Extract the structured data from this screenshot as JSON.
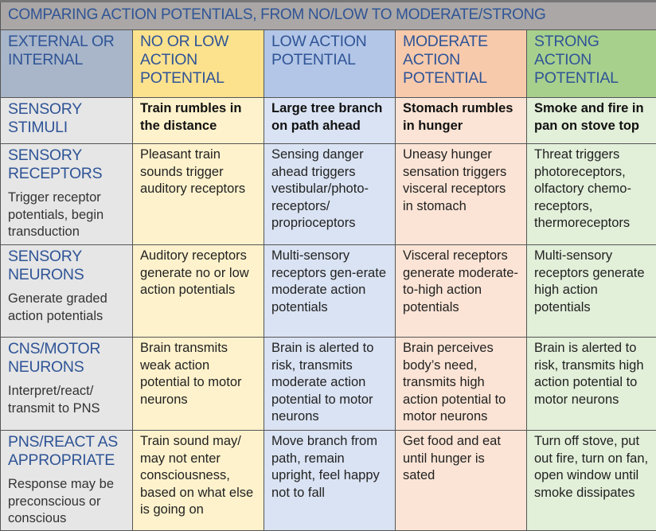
{
  "title": "COMPARING ACTION POTENTIALS, FROM NO/LOW TO MODERATE/STRONG",
  "headers": [
    "EXTERNAL OR INTERNAL",
    "NO OR LOW ACTION POTENTIAL",
    "LOW ACTION POTENTIAL",
    "MODERATE ACTION POTENTIAL",
    "STRONG ACTION POTENTIAL"
  ],
  "rows": [
    {
      "label": "SENSORY STIMULI",
      "sub": "",
      "cells": [
        "Train rumbles in the distance",
        "Large tree branch on path ahead",
        "Stomach rumbles in hunger",
        "Smoke and fire in pan on stove top"
      ]
    },
    {
      "label": "SENSORY RECEPTORS",
      "sub": "Trigger receptor potentials, begin transduction",
      "cells": [
        "Pleasant train sounds trigger auditory receptors",
        "Sensing danger ahead triggers vestibular/photo-receptors/ proprioceptors",
        "Uneasy hunger sensation triggers visceral receptors in stomach",
        "Threat triggers photoreceptors, olfactory chemo-receptors, thermoreceptors"
      ]
    },
    {
      "label": "SENSORY NEURONS",
      "sub": "Generate graded action potentials",
      "cells": [
        "Auditory receptors generate no or low action potentials",
        "Multi-sensory receptors gen-erate moderate action potentials",
        "Visceral receptors generate moderate-to-high action potentials",
        "Multi-sensory receptors generate high action potentials"
      ]
    },
    {
      "label": "CNS/MOTOR NEURONS",
      "sub": "Interpret/react/ transmit to PNS",
      "cells": [
        "Brain transmits weak action potential to motor neurons",
        "Brain is alerted to risk, transmits moderate action potential to motor neurons",
        "Brain perceives body’s need, transmits high action potential to motor neurons",
        "Brain is alerted to risk, transmits high action potential to motor neurons"
      ]
    },
    {
      "label": "PNS/REACT AS APPROPRIATE",
      "sub": "Response may be preconscious or conscious",
      "cells": [
        "Train sound may/ may not enter consciousness, based on what else is going on",
        "Move branch from path, remain upright, feel happy not to fall",
        "Get food and eat until hunger is sated",
        "Turn off stove, put out fire, turn on fan, open window until smoke dissipates"
      ]
    }
  ]
}
